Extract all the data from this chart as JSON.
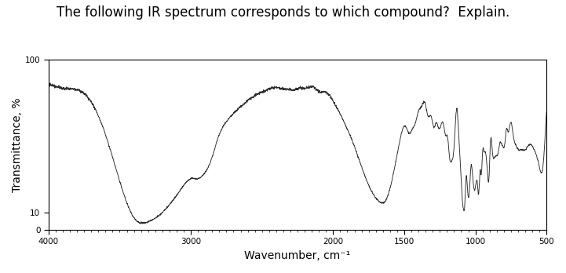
{
  "title": "The following IR spectrum corresponds to which compound?  Explain.",
  "xlabel": "Wavenumber, cm⁻¹",
  "ylabel": "Transmittance, %",
  "xlim": [
    4000,
    500
  ],
  "ylim": [
    0,
    100
  ],
  "yticks": [
    0,
    10,
    100
  ],
  "xticks": [
    4000,
    3000,
    2000,
    1500,
    1000,
    500
  ],
  "background_color": "#ffffff",
  "line_color": "#2a2a2a",
  "title_fontsize": 12,
  "axis_fontsize": 10
}
